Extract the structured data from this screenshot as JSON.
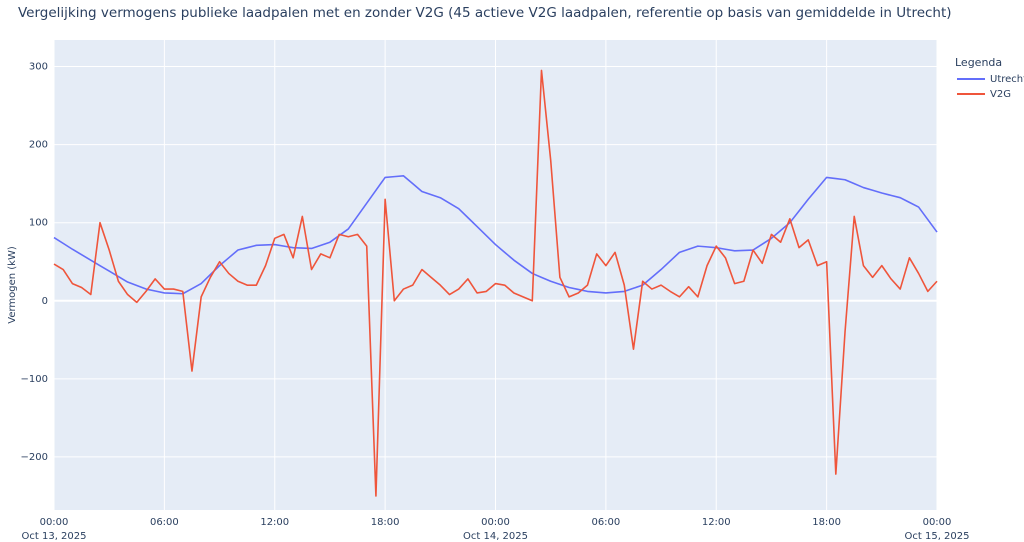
{
  "chart_data": {
    "type": "line",
    "title": "Vergelijking vermogens publieke laadpalen met en zonder V2G (45 actieve V2G laadpalen, referentie op basis van gemiddelde in Utrecht)",
    "ylabel": "Vermogen (kW)",
    "legend_title": "Legenda",
    "legend": "right",
    "grid": true,
    "xlim": [
      "2025-10-13 00:00",
      "2025-10-15 00:00"
    ],
    "xticks": [
      {
        "value": "2025-10-13 00:00",
        "label": [
          "00:00",
          "Oct 13, 2025"
        ]
      },
      {
        "value": "2025-10-13 06:00",
        "label": [
          "06:00"
        ]
      },
      {
        "value": "2025-10-13 12:00",
        "label": [
          "12:00"
        ]
      },
      {
        "value": "2025-10-13 18:00",
        "label": [
          "18:00"
        ]
      },
      {
        "value": "2025-10-14 00:00",
        "label": [
          "00:00",
          "Oct 14, 2025"
        ]
      },
      {
        "value": "2025-10-14 06:00",
        "label": [
          "06:00"
        ]
      },
      {
        "value": "2025-10-14 12:00",
        "label": [
          "12:00"
        ]
      },
      {
        "value": "2025-10-14 18:00",
        "label": [
          "18:00"
        ]
      },
      {
        "value": "2025-10-15 00:00",
        "label": [
          "00:00",
          "Oct 15, 2025"
        ]
      }
    ],
    "ylim": [
      -268,
      334
    ],
    "yticks": [
      {
        "value": -200,
        "label": "−200"
      },
      {
        "value": -100,
        "label": "−100"
      },
      0,
      100,
      200,
      300
    ],
    "x": [
      "2025-10-13 00:00",
      "2025-10-13 00:30",
      "2025-10-13 01:00",
      "2025-10-13 01:30",
      "2025-10-13 02:00",
      "2025-10-13 02:30",
      "2025-10-13 03:00",
      "2025-10-13 03:30",
      "2025-10-13 04:00",
      "2025-10-13 04:30",
      "2025-10-13 05:00",
      "2025-10-13 05:30",
      "2025-10-13 06:00",
      "2025-10-13 06:30",
      "2025-10-13 07:00",
      "2025-10-13 07:30",
      "2025-10-13 08:00",
      "2025-10-13 08:30",
      "2025-10-13 09:00",
      "2025-10-13 09:30",
      "2025-10-13 10:00",
      "2025-10-13 10:30",
      "2025-10-13 11:00",
      "2025-10-13 11:30",
      "2025-10-13 12:00",
      "2025-10-13 12:30",
      "2025-10-13 13:00",
      "2025-10-13 13:30",
      "2025-10-13 14:00",
      "2025-10-13 14:30",
      "2025-10-13 15:00",
      "2025-10-13 15:30",
      "2025-10-13 16:00",
      "2025-10-13 16:30",
      "2025-10-13 17:00",
      "2025-10-13 17:30",
      "2025-10-13 18:00",
      "2025-10-13 18:30",
      "2025-10-13 19:00",
      "2025-10-13 19:30",
      "2025-10-13 20:00",
      "2025-10-13 20:30",
      "2025-10-13 21:00",
      "2025-10-13 21:30",
      "2025-10-13 22:00",
      "2025-10-13 22:30",
      "2025-10-13 23:00",
      "2025-10-13 23:30",
      "2025-10-14 00:00",
      "2025-10-14 00:30",
      "2025-10-14 01:00",
      "2025-10-14 01:30",
      "2025-10-14 02:00",
      "2025-10-14 02:30",
      "2025-10-14 03:00",
      "2025-10-14 03:30",
      "2025-10-14 04:00",
      "2025-10-14 04:30",
      "2025-10-14 05:00",
      "2025-10-14 05:30",
      "2025-10-14 06:00",
      "2025-10-14 06:30",
      "2025-10-14 07:00",
      "2025-10-14 07:30",
      "2025-10-14 08:00",
      "2025-10-14 08:30",
      "2025-10-14 09:00",
      "2025-10-14 09:30",
      "2025-10-14 10:00",
      "2025-10-14 10:30",
      "2025-10-14 11:00",
      "2025-10-14 11:30",
      "2025-10-14 12:00",
      "2025-10-14 12:30",
      "2025-10-14 13:00",
      "2025-10-14 13:30",
      "2025-10-14 14:00",
      "2025-10-14 14:30",
      "2025-10-14 15:00",
      "2025-10-14 15:30",
      "2025-10-14 16:00",
      "2025-10-14 16:30",
      "2025-10-14 17:00",
      "2025-10-14 17:30",
      "2025-10-14 18:00",
      "2025-10-14 18:30",
      "2025-10-14 19:00",
      "2025-10-14 19:30",
      "2025-10-14 20:00",
      "2025-10-14 20:30",
      "2025-10-14 21:00",
      "2025-10-14 21:30",
      "2025-10-14 22:00",
      "2025-10-14 22:30",
      "2025-10-14 23:00",
      "2025-10-14 23:30",
      "2025-10-15 00:00"
    ],
    "series": [
      {
        "name": "Utrecht",
        "color": "#636efa",
        "values": [
          81,
          73.5,
          66,
          59,
          52,
          45,
          38,
          31,
          24,
          19.5,
          15,
          12.5,
          10,
          9.5,
          9,
          15.5,
          22,
          33.5,
          45,
          55,
          65,
          68,
          71,
          71.5,
          72,
          70,
          68,
          67.5,
          67,
          71,
          75,
          83.5,
          92,
          108.5,
          125,
          141.5,
          158,
          159,
          160,
          150,
          140,
          136,
          132,
          125,
          118,
          106.5,
          95,
          83.5,
          72,
          62,
          52,
          43.5,
          35,
          30,
          25,
          21,
          17,
          14.5,
          12,
          11,
          10,
          11,
          12,
          16,
          20,
          30,
          40,
          51,
          62,
          66,
          70,
          69,
          68,
          66,
          64,
          64.5,
          65,
          72.5,
          80,
          90,
          100,
          115,
          130,
          144,
          158,
          156.5,
          155,
          150,
          145,
          141.5,
          138,
          135,
          132,
          126,
          120,
          104,
          88
        ]
      },
      {
        "name": "V2G",
        "color": "#ef553b",
        "values": [
          47,
          40,
          22,
          17,
          8,
          100,
          65,
          25,
          8,
          -2,
          12,
          28,
          15,
          15,
          12,
          -90,
          5,
          30,
          50,
          35,
          25,
          20,
          20,
          45,
          80,
          85,
          55,
          108,
          40,
          60,
          55,
          85,
          82,
          85,
          70,
          -250,
          130,
          0,
          15,
          20,
          40,
          30,
          20,
          8,
          15,
          28,
          10,
          12,
          22,
          20,
          10,
          5,
          0,
          295,
          180,
          30,
          5,
          10,
          20,
          60,
          45,
          62,
          20,
          -62,
          25,
          15,
          20,
          12,
          5,
          18,
          5,
          45,
          70,
          55,
          22,
          25,
          65,
          48,
          85,
          75,
          105,
          68,
          78,
          45,
          50,
          -222,
          -40,
          108,
          45,
          30,
          45,
          28,
          15,
          55,
          35,
          12,
          25
        ]
      }
    ]
  }
}
